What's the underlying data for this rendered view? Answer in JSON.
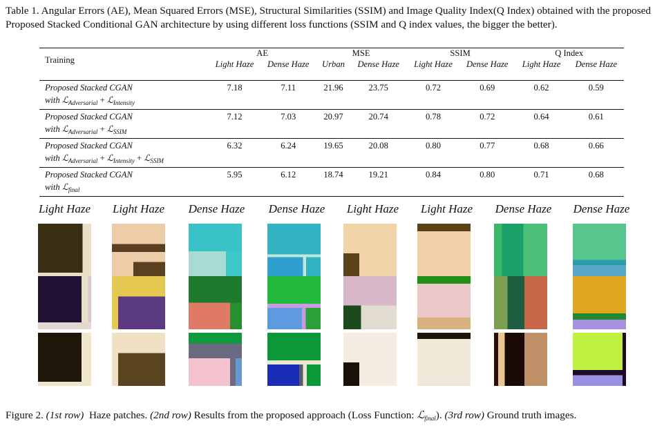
{
  "table_caption": "Table 1. Angular Errors (AE), Mean Squared Errors (MSE), Structural Similarities (SSIM) and Image Quality Index(Q Index) obtained with the proposed Proposed Stacked Conditional GAN architecture by using different loss functions (SSIM and Q index values, the bigger the better).",
  "table": {
    "training_header": "Training",
    "groups": [
      {
        "label": "AE",
        "columns": [
          "Light Haze",
          "Dense Haze"
        ]
      },
      {
        "label": "MSE",
        "columns": [
          "Urban",
          "Dense Haze"
        ]
      },
      {
        "label": "SSIM",
        "columns": [
          "Light Haze",
          "Dense Haze"
        ]
      },
      {
        "label": "Q Index",
        "columns": [
          "Light Haze",
          "Dense Haze"
        ]
      }
    ],
    "rows": [
      {
        "line1": "Proposed Stacked CGAN",
        "prefix": "with ",
        "loss": [
          {
            "sub": "Adversarial"
          },
          {
            "sub": "Intensity"
          }
        ],
        "values": [
          "7.18",
          "7.11",
          "21.96",
          "23.75",
          "0.72",
          "0.69",
          "0.62",
          "0.59"
        ]
      },
      {
        "line1": "Proposed Stacked CGAN",
        "prefix": "with ",
        "loss": [
          {
            "sub": "Adversarial"
          },
          {
            "sub": "SSIM"
          }
        ],
        "values": [
          "7.12",
          "7.03",
          "20.97",
          "20.74",
          "0.78",
          "0.72",
          "0.64",
          "0.61"
        ]
      },
      {
        "line1": "Proposed Stacked CGAN",
        "prefix": "with ",
        "loss": [
          {
            "sub": "Adversarial"
          },
          {
            "sub": "Intensity"
          },
          {
            "sub": "SSIM"
          }
        ],
        "values": [
          "6.32",
          "6.24",
          "19.65",
          "20.08",
          "0.80",
          "0.77",
          "0.68",
          "0.66"
        ]
      },
      {
        "line1": "Proposed Stacked CGAN",
        "prefix": "with ",
        "loss": [
          {
            "sub": "final"
          }
        ],
        "values": [
          "5.95",
          "6.12",
          "18.74",
          "19.21",
          "0.84",
          "0.80",
          "0.71",
          "0.68"
        ]
      }
    ]
  },
  "figure": {
    "column_labels": [
      "Light Haze",
      "Light Haze",
      "Dense Haze",
      "Dense Haze",
      "Light Haze",
      "Light Haze",
      "Dense Haze",
      "Dense Haze"
    ],
    "row_descriptions": [
      "Haze patches",
      "Results from the proposed approach",
      "Ground truth images"
    ],
    "caption": {
      "prefix": "Figure 2. ",
      "r1": "(1st row)",
      "t1": "  Haze patches. ",
      "r2": "(2nd row)",
      "t2": " Results from the proposed approach (Loss Function: ",
      "sym_sub": "final",
      "t3": "). ",
      "r3": "(3rd row)",
      "t4": " Ground truth images."
    }
  }
}
